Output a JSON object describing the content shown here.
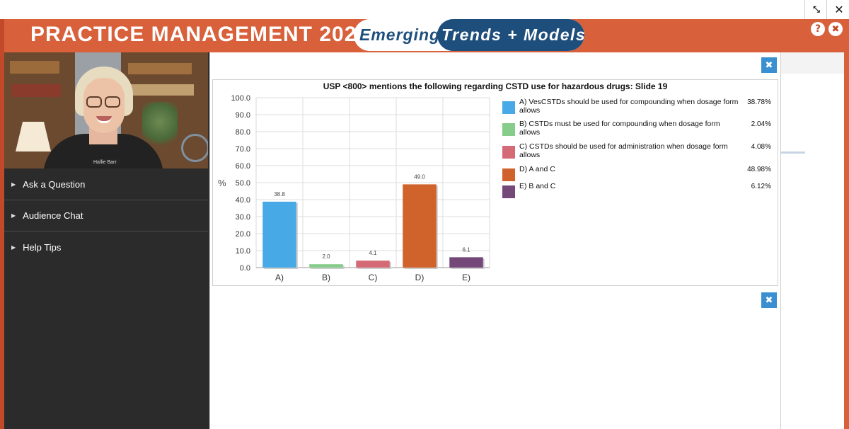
{
  "window": {
    "expand_icon": "expand-icon",
    "close_icon": "close-icon"
  },
  "banner": {
    "title": "PRACTICE MANAGEMENT 2021",
    "pill_left": "Emerging",
    "pill_right": "Trends + Models",
    "help": "?",
    "close": "✖",
    "color": "#d8603a"
  },
  "video": {
    "presenter_name": "Hallie Barr"
  },
  "sidebar": {
    "items": [
      {
        "label": "Ask a Question"
      },
      {
        "label": "Audience Chat"
      },
      {
        "label": "Help Tips"
      }
    ]
  },
  "poll": {
    "close_label": "✖",
    "close_label_2": "✖",
    "legend": [
      {
        "letter": "A)",
        "text": "VesCSTDs should be used for compounding when dosage form allows",
        "pct": "38.78%",
        "color": "#47a9e6"
      },
      {
        "letter": "B)",
        "text": "CSTDs must be used for compounding when dosage form allows",
        "pct": "2.04%",
        "color": "#86cc8a"
      },
      {
        "letter": "C)",
        "text": "CSTDs should be used for administration when dosage form allows",
        "pct": "4.08%",
        "color": "#d46a76"
      },
      {
        "letter": "D)",
        "text": "A and C",
        "pct": "48.98%",
        "color": "#d0622c"
      },
      {
        "letter": "E)",
        "text": "B and C",
        "pct": "6.12%",
        "color": "#74497a"
      }
    ]
  },
  "chart_data": {
    "type": "bar",
    "title": "USP <800> mentions the following regarding CSTD use for hazardous drugs: Slide 19",
    "ylabel": "%",
    "xlabel": "",
    "categories": [
      "A)",
      "B)",
      "C)",
      "D)",
      "E)"
    ],
    "values": [
      38.8,
      2.0,
      4.1,
      49.0,
      6.1
    ],
    "value_labels": [
      "38.8",
      "2.0",
      "4.1",
      "49.0",
      "6.1"
    ],
    "colors": [
      "#47a9e6",
      "#86cc8a",
      "#d46a76",
      "#d0622c",
      "#74497a"
    ],
    "ylim": [
      0,
      100
    ],
    "yticks": [
      "0.0",
      "10.0",
      "20.0",
      "30.0",
      "40.0",
      "50.0",
      "60.0",
      "70.0",
      "80.0",
      "90.0",
      "100.0"
    ],
    "grid": true,
    "legend_position": "right"
  }
}
